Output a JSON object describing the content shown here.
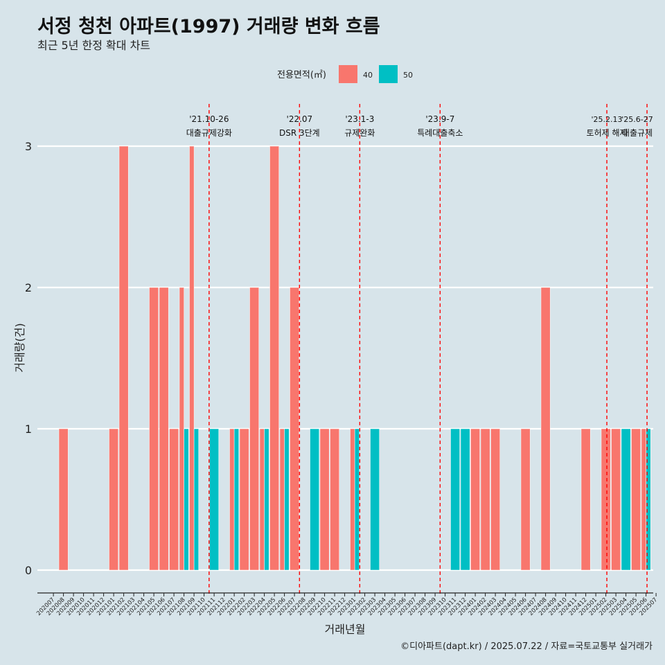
{
  "chart_data": {
    "type": "bar",
    "title": "서정 청천 아파트(1997) 거래량 변화 흐름",
    "subtitle": "최근 5년 한정 확대 차트",
    "xlabel": "거래년월",
    "ylabel": "거래량(건)",
    "caption": "©디아파트(dapt.kr) / 2025.07.22 / 자료=국토교통부 실거래가",
    "legend": {
      "title": "전용면적(㎡)",
      "position": "top",
      "entries": [
        {
          "name": "40",
          "color": "#f8766d"
        },
        {
          "name": "50",
          "color": "#00bfc4"
        }
      ]
    },
    "yticks": [
      0,
      1,
      2,
      3
    ],
    "ylim": [
      -0.15,
      3.35
    ],
    "categories": [
      "202007",
      "202008",
      "202009",
      "202010",
      "202011",
      "202012",
      "202101",
      "202102",
      "202103",
      "202104",
      "202105",
      "202106",
      "202107",
      "202108",
      "202109",
      "202110",
      "202111",
      "202112",
      "202201",
      "202202",
      "202203",
      "202204",
      "202205",
      "202206",
      "202207",
      "202208",
      "202209",
      "202210",
      "202211",
      "202212",
      "202301",
      "202302",
      "202303",
      "202304",
      "202305",
      "202306",
      "202307",
      "202308",
      "202309",
      "202310",
      "202311",
      "202312",
      "202401",
      "202402",
      "202403",
      "202404",
      "202405",
      "202406",
      "202407",
      "202408",
      "202409",
      "202410",
      "202411",
      "202412",
      "202501",
      "202502",
      "202503",
      "202504",
      "202505",
      "202506",
      "202507"
    ],
    "series": [
      {
        "name": "40",
        "color": "#f8766d",
        "values": [
          0,
          1,
          0,
          0,
          0,
          0,
          1,
          3,
          0,
          0,
          2,
          2,
          1,
          2,
          3,
          0,
          0,
          0,
          1,
          1,
          2,
          1,
          3,
          1,
          2,
          0,
          0,
          1,
          1,
          0,
          1,
          0,
          0,
          0,
          0,
          0,
          0,
          0,
          0,
          0,
          0,
          0,
          1,
          1,
          1,
          0,
          0,
          1,
          0,
          2,
          0,
          0,
          0,
          1,
          0,
          1,
          1,
          0,
          1,
          1,
          0
        ]
      },
      {
        "name": "50",
        "color": "#00bfc4",
        "values": [
          0,
          0,
          0,
          0,
          0,
          0,
          0,
          0,
          0,
          0,
          0,
          0,
          0,
          1,
          1,
          0,
          1,
          0,
          1,
          0,
          0,
          1,
          0,
          1,
          0,
          0,
          1,
          0,
          0,
          0,
          1,
          0,
          1,
          0,
          0,
          0,
          0,
          0,
          0,
          0,
          1,
          1,
          0,
          0,
          0,
          0,
          0,
          0,
          0,
          0,
          0,
          0,
          0,
          0,
          0,
          0,
          0,
          1,
          0,
          1,
          0
        ]
      }
    ],
    "events": [
      {
        "x": 15.5,
        "date": "'21.10-26",
        "label": "대출규제강화",
        "dx": 0
      },
      {
        "x": 24.5,
        "date": "'22.07",
        "label": "DSR 3단계",
        "dx": 0
      },
      {
        "x": 30.5,
        "date": "'23.1-3",
        "label": "규제완화",
        "dx": 0
      },
      {
        "x": 38.5,
        "date": "'23.9-7",
        "label": "특례대출축소",
        "dx": 0
      },
      {
        "x": 55.1,
        "date": "'25.2.13",
        "label": "토허제 해제",
        "dx": 0
      },
      {
        "x": 59.1,
        "date": "'25.6-27",
        "label": "대출규제",
        "dx": 0
      }
    ]
  }
}
